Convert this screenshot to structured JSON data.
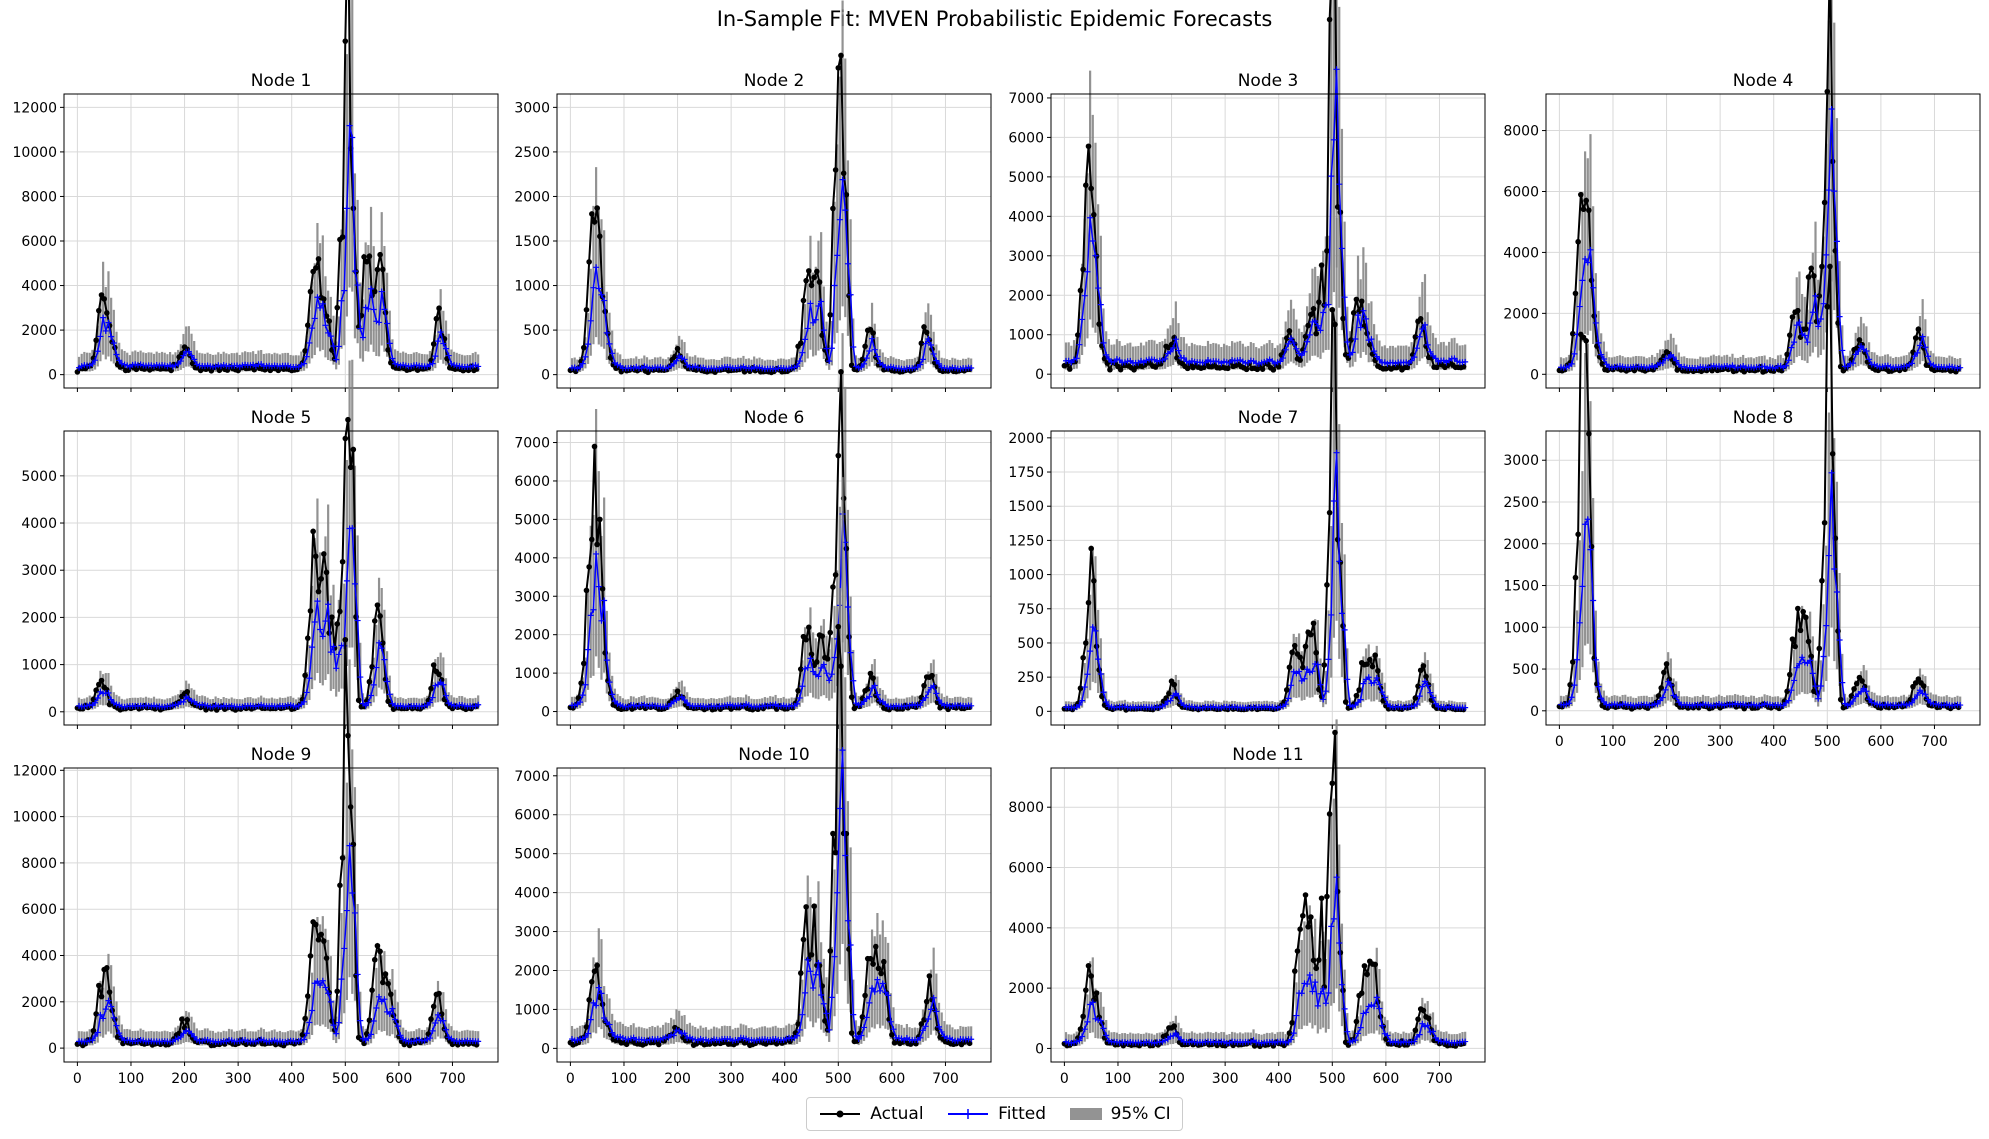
{
  "figure": {
    "title": "In-Sample Fit: MVEN Probabilistic Epidemic Forecasts"
  },
  "legend": {
    "actual": "Actual",
    "fitted": "Fitted",
    "ci": "95% CI"
  },
  "colors": {
    "actual": "#000000",
    "fitted": "#0000ff",
    "ci": "#808080",
    "grid": "#d9d9d9"
  },
  "chart_data": [
    {
      "type": "line",
      "title": "Node 1",
      "xlim": [
        -25,
        785
      ],
      "ylim": [
        -600,
        12600
      ],
      "xticks": [
        0,
        100,
        200,
        300,
        400,
        500,
        600,
        700
      ],
      "yticks": [
        0,
        2000,
        4000,
        6000,
        8000,
        10000,
        12000
      ],
      "peaks": [
        [
          45,
          2300
        ],
        [
          60,
          1500
        ],
        [
          200,
          800
        ],
        [
          440,
          4600
        ],
        [
          460,
          3500
        ],
        [
          490,
          5000
        ],
        [
          500,
          10000
        ],
        [
          505,
          11900
        ],
        [
          515,
          7800
        ],
        [
          540,
          4700
        ],
        [
          565,
          4600
        ],
        [
          675,
          2200
        ]
      ],
      "base": 260,
      "fit_scale": 0.6
    },
    {
      "type": "line",
      "title": "Node 2",
      "xlim": [
        -25,
        785
      ],
      "ylim": [
        -150,
        3150
      ],
      "xticks": [
        0,
        100,
        200,
        300,
        400,
        500,
        600,
        700
      ],
      "yticks": [
        0,
        500,
        1000,
        1500,
        2000,
        2500,
        3000
      ],
      "peaks": [
        [
          40,
          700
        ],
        [
          48,
          1170
        ],
        [
          60,
          500
        ],
        [
          200,
          200
        ],
        [
          440,
          800
        ],
        [
          460,
          900
        ],
        [
          490,
          1500
        ],
        [
          500,
          2300
        ],
        [
          505,
          3000
        ],
        [
          515,
          1950
        ],
        [
          560,
          400
        ],
        [
          665,
          460
        ]
      ],
      "base": 50,
      "fit_scale": 0.6
    },
    {
      "type": "line",
      "title": "Node 3",
      "xlim": [
        -25,
        785
      ],
      "ylim": [
        -350,
        7100
      ],
      "xticks": [
        0,
        100,
        200,
        300,
        400,
        500,
        600,
        700
      ],
      "yticks": [
        0,
        1000,
        2000,
        3000,
        4000,
        5000,
        6000,
        7000
      ],
      "peaks": [
        [
          40,
          2000
        ],
        [
          48,
          3150
        ],
        [
          60,
          1000
        ],
        [
          200,
          700
        ],
        [
          420,
          700
        ],
        [
          460,
          1400
        ],
        [
          480,
          2200
        ],
        [
          495,
          4500
        ],
        [
          500,
          6800
        ],
        [
          505,
          6850
        ],
        [
          515,
          3500
        ],
        [
          545,
          1300
        ],
        [
          560,
          1000
        ],
        [
          665,
          1200
        ]
      ],
      "base": 200,
      "fit_scale": 0.7
    },
    {
      "type": "line",
      "title": "Node 4",
      "xlim": [
        -25,
        785
      ],
      "ylim": [
        -450,
        9200
      ],
      "xticks": [
        0,
        100,
        200,
        300,
        400,
        500,
        600,
        700
      ],
      "yticks": [
        0,
        2000,
        4000,
        6000,
        8000
      ],
      "peaks": [
        [
          40,
          3000
        ],
        [
          48,
          3900
        ],
        [
          60,
          1300
        ],
        [
          200,
          700
        ],
        [
          440,
          1800
        ],
        [
          470,
          3000
        ],
        [
          490,
          4000
        ],
        [
          500,
          6800
        ],
        [
          505,
          8700
        ],
        [
          515,
          3000
        ],
        [
          560,
          1000
        ],
        [
          670,
          1100
        ]
      ],
      "base": 150,
      "fit_scale": 0.7
    },
    {
      "type": "line",
      "title": "Node 5",
      "xlim": [
        -25,
        785
      ],
      "ylim": [
        -280,
        5950
      ],
      "xticks": [
        0,
        100,
        200,
        300,
        400,
        500,
        600,
        700
      ],
      "yticks": [
        0,
        1000,
        2000,
        3000,
        4000,
        5000
      ],
      "peaks": [
        [
          45,
          600
        ],
        [
          200,
          350
        ],
        [
          440,
          2500
        ],
        [
          455,
          2100
        ],
        [
          470,
          1600
        ],
        [
          490,
          2200
        ],
        [
          500,
          4500
        ],
        [
          505,
          5700
        ],
        [
          515,
          4200
        ],
        [
          560,
          2000
        ],
        [
          670,
          900
        ]
      ],
      "base": 80,
      "fit_scale": 0.6
    },
    {
      "type": "line",
      "title": "Node 6",
      "xlim": [
        -25,
        785
      ],
      "ylim": [
        -350,
        7300
      ],
      "xticks": [
        0,
        100,
        200,
        300,
        400,
        500,
        600,
        700
      ],
      "yticks": [
        0,
        1000,
        2000,
        3000,
        4000,
        5000,
        6000,
        7000
      ],
      "peaks": [
        [
          35,
          2500
        ],
        [
          48,
          4300
        ],
        [
          60,
          1000
        ],
        [
          200,
          400
        ],
        [
          440,
          1900
        ],
        [
          470,
          2000
        ],
        [
          490,
          3200
        ],
        [
          500,
          5300
        ],
        [
          505,
          7000
        ],
        [
          515,
          4800
        ],
        [
          560,
          700
        ],
        [
          670,
          800
        ]
      ],
      "base": 100,
      "fit_scale": 0.6
    },
    {
      "type": "line",
      "title": "Node 7",
      "xlim": [
        -25,
        785
      ],
      "ylim": [
        -100,
        2050
      ],
      "xticks": [
        0,
        100,
        200,
        300,
        400,
        500,
        600,
        700
      ],
      "yticks": [
        0,
        250,
        500,
        750,
        1000,
        1250,
        1500,
        1750,
        2000
      ],
      "peaks": [
        [
          45,
          450
        ],
        [
          52,
          580
        ],
        [
          200,
          180
        ],
        [
          430,
          500
        ],
        [
          460,
          700
        ],
        [
          490,
          900
        ],
        [
          500,
          1450
        ],
        [
          505,
          1960
        ],
        [
          515,
          1100
        ],
        [
          560,
          330
        ],
        [
          580,
          320
        ],
        [
          670,
          260
        ]
      ],
      "base": 20,
      "fit_scale": 0.6
    },
    {
      "type": "line",
      "title": "Node 8",
      "xlim": [
        -25,
        785
      ],
      "ylim": [
        -170,
        3350
      ],
      "xticks": [
        0,
        100,
        200,
        300,
        400,
        500,
        600,
        700
      ],
      "yticks": [
        0,
        500,
        1000,
        1500,
        2000,
        2500,
        3000
      ],
      "peaks": [
        [
          38,
          1350
        ],
        [
          45,
          2050
        ],
        [
          52,
          1450
        ],
        [
          200,
          400
        ],
        [
          440,
          800
        ],
        [
          460,
          900
        ],
        [
          490,
          1400
        ],
        [
          500,
          2500
        ],
        [
          505,
          3200
        ],
        [
          515,
          1900
        ],
        [
          560,
          350
        ],
        [
          670,
          420
        ]
      ],
      "base": 50,
      "fit_scale": 0.5
    },
    {
      "type": "line",
      "title": "Node 9",
      "xlim": [
        -25,
        785
      ],
      "ylim": [
        -600,
        12100
      ],
      "xticks": [
        0,
        100,
        200,
        300,
        400,
        500,
        600,
        700
      ],
      "yticks": [
        0,
        2000,
        4000,
        6000,
        8000,
        10000,
        12000
      ],
      "peaks": [
        [
          45,
          2400
        ],
        [
          60,
          1400
        ],
        [
          200,
          900
        ],
        [
          440,
          4700
        ],
        [
          460,
          4400
        ],
        [
          490,
          6000
        ],
        [
          500,
          9500
        ],
        [
          505,
          11500
        ],
        [
          515,
          7300
        ],
        [
          560,
          3300
        ],
        [
          580,
          2600
        ],
        [
          670,
          2100
        ]
      ],
      "base": 220,
      "fit_scale": 0.5
    },
    {
      "type": "line",
      "title": "Node 10",
      "xlim": [
        -25,
        785
      ],
      "ylim": [
        -350,
        7200
      ],
      "xticks": [
        0,
        100,
        200,
        300,
        400,
        500,
        600,
        700
      ],
      "yticks": [
        0,
        1000,
        2000,
        3000,
        4000,
        5000,
        6000,
        7000
      ],
      "peaks": [
        [
          45,
          1700
        ],
        [
          60,
          700
        ],
        [
          200,
          350
        ],
        [
          440,
          2600
        ],
        [
          460,
          2500
        ],
        [
          490,
          4500
        ],
        [
          500,
          6200
        ],
        [
          505,
          6950
        ],
        [
          515,
          4200
        ],
        [
          560,
          2400
        ],
        [
          580,
          2100
        ],
        [
          670,
          1400
        ]
      ],
      "base": 150,
      "fit_scale": 0.65
    },
    {
      "type": "line",
      "title": "Node 11",
      "xlim": [
        -25,
        785
      ],
      "ylim": [
        -450,
        9300
      ],
      "xticks": [
        0,
        100,
        200,
        300,
        400,
        500,
        600,
        700
      ],
      "yticks": [
        0,
        2000,
        4000,
        6000,
        8000
      ],
      "peaks": [
        [
          45,
          2000
        ],
        [
          60,
          900
        ],
        [
          200,
          550
        ],
        [
          440,
          3800
        ],
        [
          460,
          3500
        ],
        [
          480,
          3900
        ],
        [
          495,
          8600
        ],
        [
          505,
          8800
        ],
        [
          515,
          3600
        ],
        [
          560,
          2400
        ],
        [
          580,
          2000
        ],
        [
          670,
          1400
        ]
      ],
      "base": 150,
      "fit_scale": 0.5
    }
  ]
}
